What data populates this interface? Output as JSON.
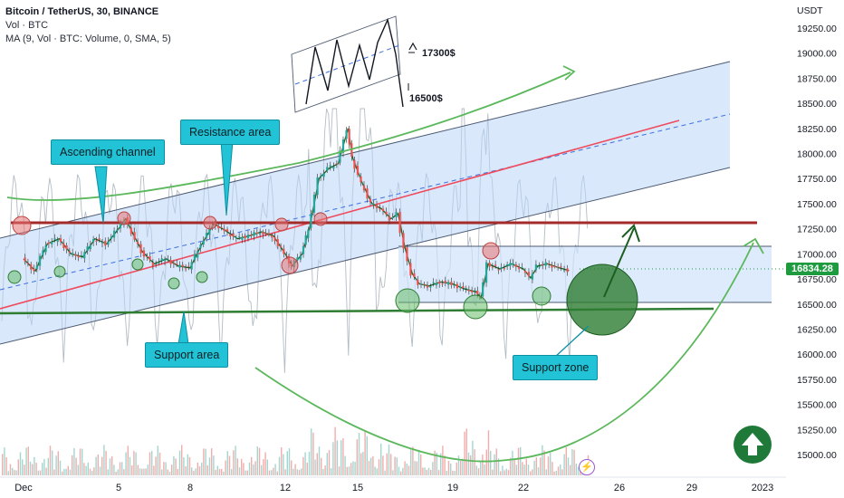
{
  "legend": {
    "title": "Bitcoin / TetherUS, 30, BINANCE",
    "volume": "Vol · BTC",
    "ma": "MA (9, Vol · BTC: Volume, 0, SMA, 5)"
  },
  "axis_unit": "USDT",
  "current_price": "16834.28",
  "annotations": {
    "ascending_channel": "Ascending channel",
    "resistance_area": "Resistance area",
    "support_area": "Support area",
    "support_zone": "Support zone",
    "target_high": "17300$",
    "target_low": "16500$"
  },
  "colors": {
    "channel_fill": "#cfe3fb",
    "resistance_line": "#a52a2a",
    "support_line": "#2e7d32",
    "projection_curve": "#5cb85c",
    "callout": "#22c3d6",
    "candle_up": "#26a69a",
    "candle_down": "#ef5350",
    "price_tag": "#1e9a3f"
  },
  "icons": [
    "arrow-up-circle-icon",
    "lightning-icon"
  ],
  "chart_data": {
    "type": "line",
    "title": "Bitcoin / TetherUS, 30, BINANCE",
    "xlabel": "",
    "ylabel": "USDT",
    "x_tick_labels": [
      "Dec",
      "5",
      "8",
      "12",
      "15",
      "19",
      "22",
      "26",
      "29",
      "2023"
    ],
    "y_tick_labels": [
      "19250.00",
      "19000.00",
      "18750.00",
      "18500.00",
      "18250.00",
      "18000.00",
      "17750.00",
      "17500.00",
      "17250.00",
      "17000.00",
      "16750.00",
      "16500.00",
      "16250.00",
      "16000.00",
      "15750.00",
      "15500.00",
      "15250.00",
      "15000.00"
    ],
    "ylim": [
      14850,
      19400
    ],
    "grid": false,
    "series": [
      {
        "name": "BTCUSDT",
        "points": [
          [
            1,
            16950
          ],
          [
            1.5,
            16830
          ],
          [
            2,
            17100
          ],
          [
            2.5,
            17150
          ],
          [
            3,
            17000
          ],
          [
            3.5,
            16970
          ],
          [
            4,
            17150
          ],
          [
            4.5,
            17100
          ],
          [
            5,
            17250
          ],
          [
            5.3,
            17350
          ],
          [
            5.6,
            17200
          ],
          [
            6,
            17020
          ],
          [
            6.5,
            16900
          ],
          [
            7,
            16950
          ],
          [
            7.5,
            16880
          ],
          [
            8,
            16860
          ],
          [
            8.5,
            17100
          ],
          [
            9,
            17300
          ],
          [
            9.5,
            17230
          ],
          [
            10,
            17150
          ],
          [
            10.5,
            17180
          ],
          [
            11,
            17220
          ],
          [
            11.5,
            17180
          ],
          [
            12,
            17000
          ],
          [
            12.3,
            16880
          ],
          [
            12.7,
            17000
          ],
          [
            13,
            17250
          ],
          [
            13.4,
            17750
          ],
          [
            13.8,
            17850
          ],
          [
            14.2,
            17900
          ],
          [
            14.6,
            18250
          ],
          [
            14.8,
            17950
          ],
          [
            15.2,
            17700
          ],
          [
            15.6,
            17500
          ],
          [
            16,
            17450
          ],
          [
            16.4,
            17350
          ],
          [
            16.7,
            17400
          ],
          [
            17,
            17050
          ],
          [
            17.3,
            16800
          ],
          [
            17.6,
            16700
          ],
          [
            18,
            16680
          ],
          [
            18.5,
            16720
          ],
          [
            19,
            16700
          ],
          [
            19.5,
            16650
          ],
          [
            20,
            16620
          ],
          [
            20.2,
            16560
          ],
          [
            20.5,
            16900
          ],
          [
            21,
            16850
          ],
          [
            21.5,
            16900
          ],
          [
            22,
            16850
          ],
          [
            22.3,
            16760
          ],
          [
            22.6,
            16880
          ],
          [
            23,
            16900
          ],
          [
            23.5,
            16860
          ],
          [
            23.9,
            16834
          ]
        ]
      }
    ],
    "levels": {
      "resistance": 17300,
      "support": 16500,
      "upper_range": 17080,
      "lower_range": 16530
    },
    "projection": {
      "target_high": 17300,
      "target_low": 16500
    }
  }
}
